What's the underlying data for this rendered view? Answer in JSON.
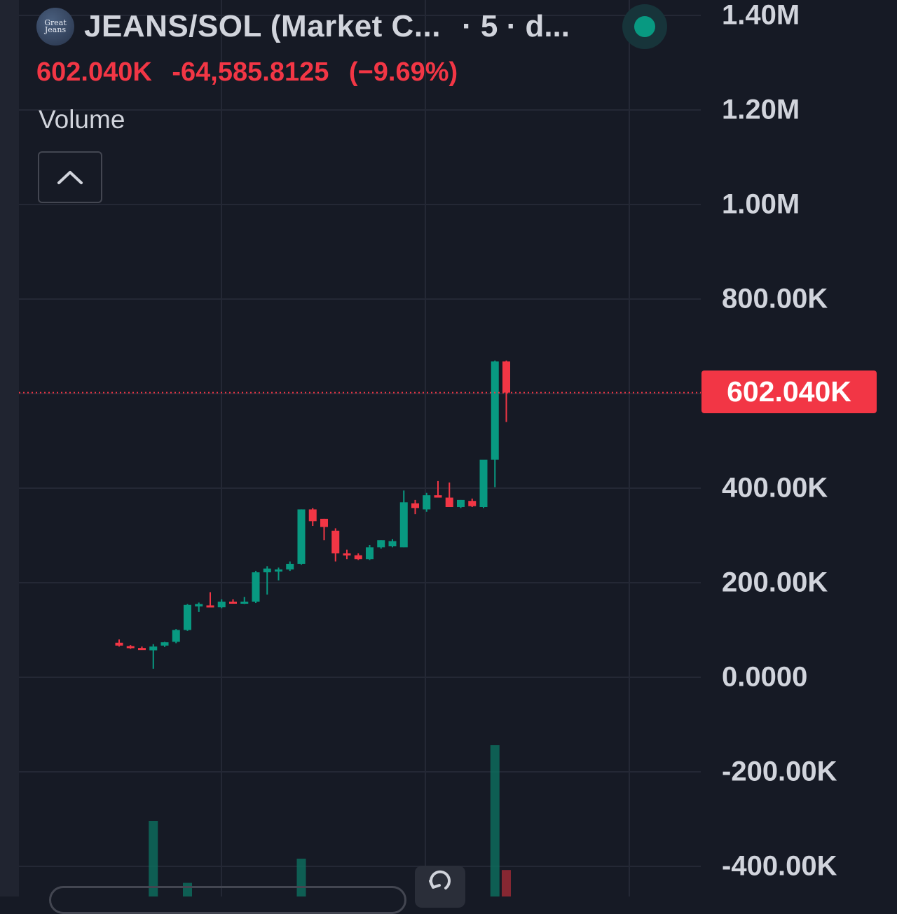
{
  "header": {
    "logo_text": [
      "Great",
      "Jeans"
    ],
    "symbol": "JEANS/SOL (Market C...",
    "interval": "· 5 · d..."
  },
  "quote": {
    "last": "602.040K",
    "change": "-64,585.8125",
    "change_pct": "(−9.69%)"
  },
  "indicator": {
    "label": "Volume"
  },
  "price_badge": "602.040K",
  "colors": {
    "up": "#089981",
    "down": "#f23645",
    "background": "#161a25",
    "grid": "#242835"
  },
  "icons": [
    "chevron-up-icon",
    "reset-chart-icon",
    "status-dot-icon"
  ],
  "chart_data": {
    "type": "candlestick",
    "ylim": [
      -500000,
      1450000
    ],
    "y_ticks": [
      {
        "value": 1400000,
        "label": "1.40M"
      },
      {
        "value": 1200000,
        "label": "1.20M"
      },
      {
        "value": 1000000,
        "label": "1.00M"
      },
      {
        "value": 800000,
        "label": "800.00K"
      },
      {
        "value": 400000,
        "label": "400.00K"
      },
      {
        "value": 200000,
        "label": "200.00K"
      },
      {
        "value": 0,
        "label": "0.0000"
      },
      {
        "value": -200000,
        "label": "-200.00K"
      },
      {
        "value": -400000,
        "label": "-400.00K"
      }
    ],
    "last_price": 602040,
    "candles": [
      {
        "o": 73000,
        "h": 80000,
        "l": 65000,
        "c": 67000
      },
      {
        "o": 66000,
        "h": 68000,
        "l": 60000,
        "c": 63000
      },
      {
        "o": 62000,
        "h": 65000,
        "l": 58000,
        "c": 61000
      },
      {
        "o": 57000,
        "h": 70000,
        "l": 18000,
        "c": 65000
      },
      {
        "o": 67000,
        "h": 75000,
        "l": 64000,
        "c": 74000
      },
      {
        "o": 75000,
        "h": 102000,
        "l": 72000,
        "c": 100000
      },
      {
        "o": 100000,
        "h": 155000,
        "l": 98000,
        "c": 153000
      },
      {
        "o": 150000,
        "h": 158000,
        "l": 138000,
        "c": 155000
      },
      {
        "o": 152000,
        "h": 180000,
        "l": 150000,
        "c": 150000
      },
      {
        "o": 148000,
        "h": 165000,
        "l": 146000,
        "c": 160000
      },
      {
        "o": 160000,
        "h": 165000,
        "l": 158000,
        "c": 158000
      },
      {
        "o": 160000,
        "h": 170000,
        "l": 155000,
        "c": 160000
      },
      {
        "o": 160000,
        "h": 225000,
        "l": 157000,
        "c": 222000
      },
      {
        "o": 222000,
        "h": 235000,
        "l": 175000,
        "c": 230000
      },
      {
        "o": 225000,
        "h": 232000,
        "l": 205000,
        "c": 228000
      },
      {
        "o": 228000,
        "h": 245000,
        "l": 225000,
        "c": 240000
      },
      {
        "o": 240000,
        "h": 355000,
        "l": 238000,
        "c": 355000
      },
      {
        "o": 355000,
        "h": 358000,
        "l": 320000,
        "c": 330000
      },
      {
        "o": 335000,
        "h": 335000,
        "l": 290000,
        "c": 318000
      },
      {
        "o": 310000,
        "h": 315000,
        "l": 245000,
        "c": 262000
      },
      {
        "o": 262000,
        "h": 270000,
        "l": 250000,
        "c": 260000
      },
      {
        "o": 258000,
        "h": 262000,
        "l": 248000,
        "c": 250000
      },
      {
        "o": 250000,
        "h": 280000,
        "l": 248000,
        "c": 275000
      },
      {
        "o": 275000,
        "h": 290000,
        "l": 272000,
        "c": 290000
      },
      {
        "o": 277000,
        "h": 292000,
        "l": 275000,
        "c": 288000
      },
      {
        "o": 275000,
        "h": 395000,
        "l": 275000,
        "c": 370000
      },
      {
        "o": 368000,
        "h": 375000,
        "l": 345000,
        "c": 358000
      },
      {
        "o": 355000,
        "h": 390000,
        "l": 350000,
        "c": 385000
      },
      {
        "o": 385000,
        "h": 415000,
        "l": 380000,
        "c": 380000
      },
      {
        "o": 380000,
        "h": 412000,
        "l": 360000,
        "c": 360000
      },
      {
        "o": 360000,
        "h": 375000,
        "l": 358000,
        "c": 375000
      },
      {
        "o": 373000,
        "h": 378000,
        "l": 360000,
        "c": 362000
      },
      {
        "o": 360000,
        "h": 460000,
        "l": 358000,
        "c": 460000
      },
      {
        "o": 460000,
        "h": 670000,
        "l": 402000,
        "c": 668000
      },
      {
        "o": 668000,
        "h": 670000,
        "l": 540000,
        "c": 602040
      }
    ],
    "volume": {
      "series_note": "volume bars (no axis printed)",
      "bars": [
        {
          "index": 3,
          "value": 1.0,
          "dir": "up"
        },
        {
          "index": 6,
          "value": 0.18,
          "dir": "up"
        },
        {
          "index": 16,
          "value": 0.5,
          "dir": "up"
        },
        {
          "index": 33,
          "value": 2.0,
          "dir": "up"
        },
        {
          "index": 34,
          "value": 0.35,
          "dir": "down"
        }
      ]
    }
  }
}
